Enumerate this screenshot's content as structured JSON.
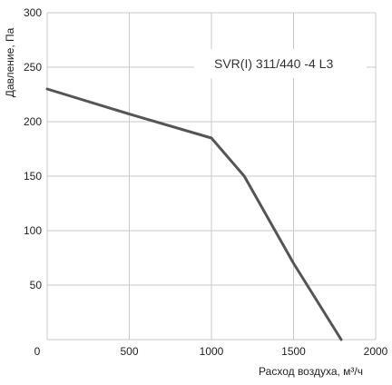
{
  "chart_data": {
    "type": "line",
    "title": "",
    "xlabel": "Расход воздуха, м³/ч",
    "ylabel": "Давление, Па",
    "xlim": [
      0,
      2000
    ],
    "ylim": [
      0,
      300
    ],
    "xticks": [
      0,
      500,
      1000,
      1500,
      2000
    ],
    "yticks": [
      50,
      100,
      150,
      200,
      250,
      300
    ],
    "grid": true,
    "legend": "none",
    "annotation": "SVR(I) 311/440 -4 L3",
    "series": [
      {
        "name": "SVR(I) 311/440 -4 L3",
        "x": [
          0,
          500,
          1000,
          1200,
          1500,
          1790
        ],
        "y": [
          230,
          207,
          185,
          150,
          70,
          0
        ]
      }
    ],
    "colors": {
      "line": "#555555",
      "grid": "#c8c8c8",
      "text": "#222222"
    }
  }
}
